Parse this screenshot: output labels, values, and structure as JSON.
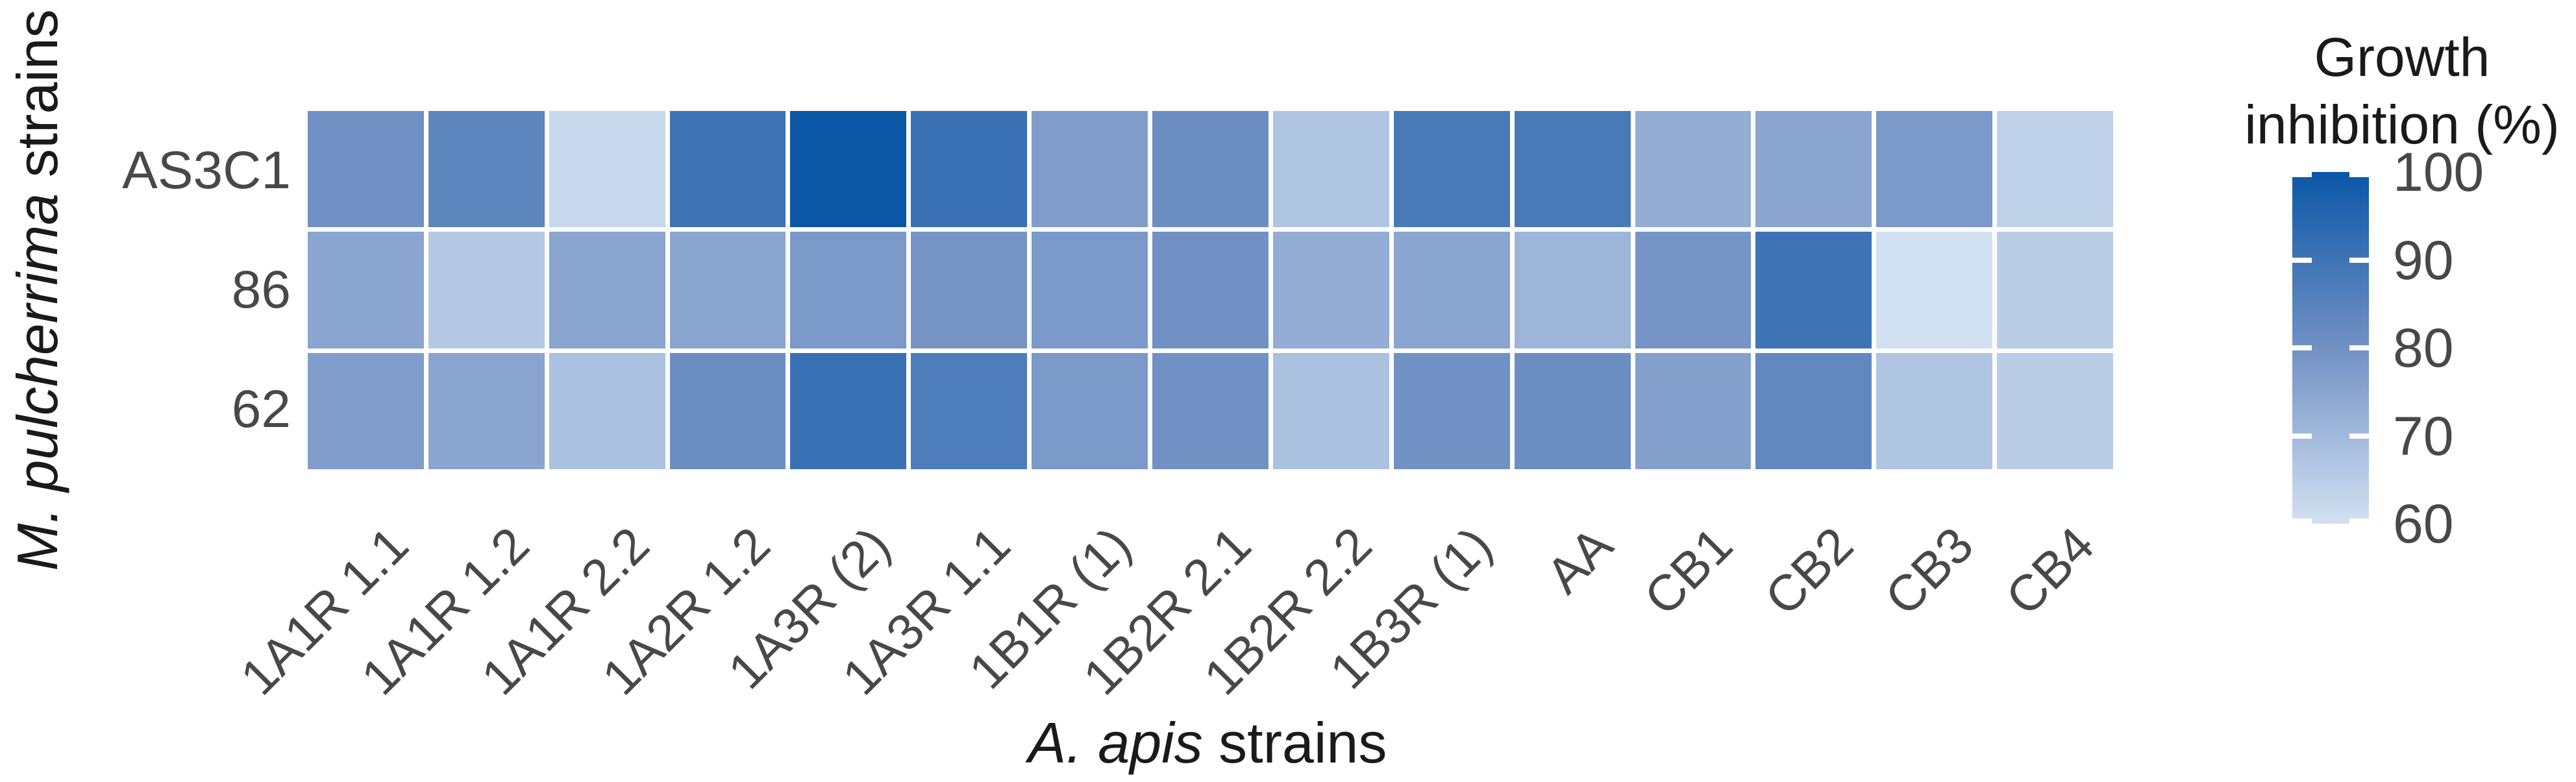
{
  "figure": {
    "background": "#ffffff"
  },
  "y_axis": {
    "title_italic": "M. pulcherrima",
    "title_regular": " strains"
  },
  "x_axis": {
    "title_italic": "A. apis",
    "title_regular": " strains"
  },
  "legend": {
    "title_line1": "Growth",
    "title_line2": "inhibition (%)",
    "tick_labels": [
      100,
      90,
      80,
      70,
      60
    ]
  },
  "chart_data": {
    "type": "heatmap",
    "title": "",
    "xlabel": "A. apis strains",
    "ylabel": "M. pulcherrima strains",
    "legend_title": "Growth inhibition (%)",
    "legend_position": "right",
    "grid": false,
    "x_categories": [
      "1A1R 1.1",
      "1A1R 1.2",
      "1A1R 2.2",
      "1A2R 1.2",
      "1A3R (2)",
      "1A3R 1.1",
      "1B1R (1)",
      "1B2R 2.1",
      "1B2R 2.2",
      "1B3R (1)",
      "AA",
      "CB1",
      "CB2",
      "CB3",
      "CB4"
    ],
    "y_categories": [
      "AS3C1",
      "86",
      "62"
    ],
    "series": [
      {
        "name": "AS3C1",
        "values": [
          80,
          84,
          62,
          90,
          100,
          91,
          77,
          81,
          67,
          88,
          88,
          73,
          75,
          78,
          64
        ]
      },
      {
        "name": "86",
        "values": [
          75,
          66,
          75,
          75,
          78,
          79,
          78,
          80,
          73,
          75,
          71,
          79,
          90,
          60,
          65
        ]
      },
      {
        "name": "62",
        "values": [
          77,
          75,
          68,
          81,
          91,
          87,
          78,
          80,
          68,
          80,
          81,
          76,
          83,
          67,
          65
        ]
      }
    ],
    "color_scale": {
      "limits": [
        60,
        100
      ],
      "stops": [
        [
          60,
          "#d2e1f2"
        ],
        [
          80,
          "#7191c4"
        ],
        [
          100,
          "#0b57a6"
        ]
      ],
      "ticks": [
        100,
        90,
        80,
        70,
        60
      ]
    }
  }
}
